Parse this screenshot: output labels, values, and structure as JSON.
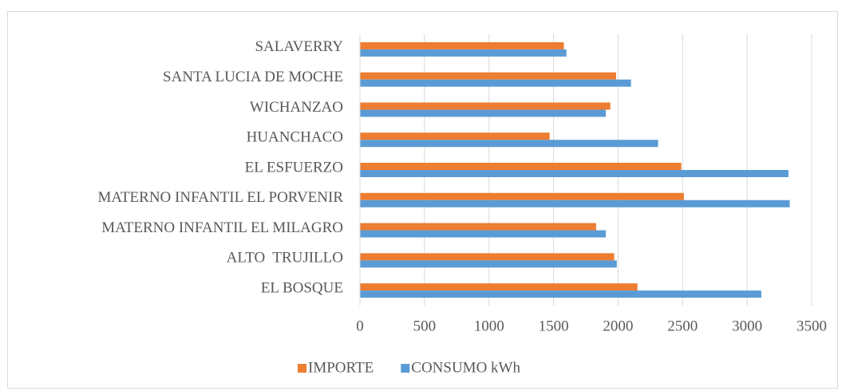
{
  "chart_data": {
    "type": "bar",
    "orientation": "horizontal",
    "categories": [
      "EL BOSQUE",
      "ALTO  TRUJILLO",
      "MATERNO INFANTIL EL MILAGRO",
      "MATERNO INFANTIL EL PORVENIR",
      "EL ESFUERZO",
      "HUANCHACO",
      "WICHANZAO",
      "SANTA LUCIA DE MOCHE",
      "SALAVERRY"
    ],
    "series": [
      {
        "name": "IMPORTE",
        "color": "#ed7d31",
        "values": [
          2150,
          1970,
          1830,
          2510,
          2490,
          1470,
          1940,
          1985,
          1580
        ]
      },
      {
        "name": "CONSUMO kWh",
        "color": "#5b9bd5",
        "values": [
          3110,
          1990,
          1905,
          3330,
          3320,
          2310,
          1905,
          2100,
          1600
        ]
      }
    ],
    "xlim": [
      0,
      3500
    ],
    "xticks": [
      0,
      500,
      1000,
      1500,
      2000,
      2500,
      3000,
      3500
    ],
    "grid": true,
    "legend": "bottom"
  }
}
